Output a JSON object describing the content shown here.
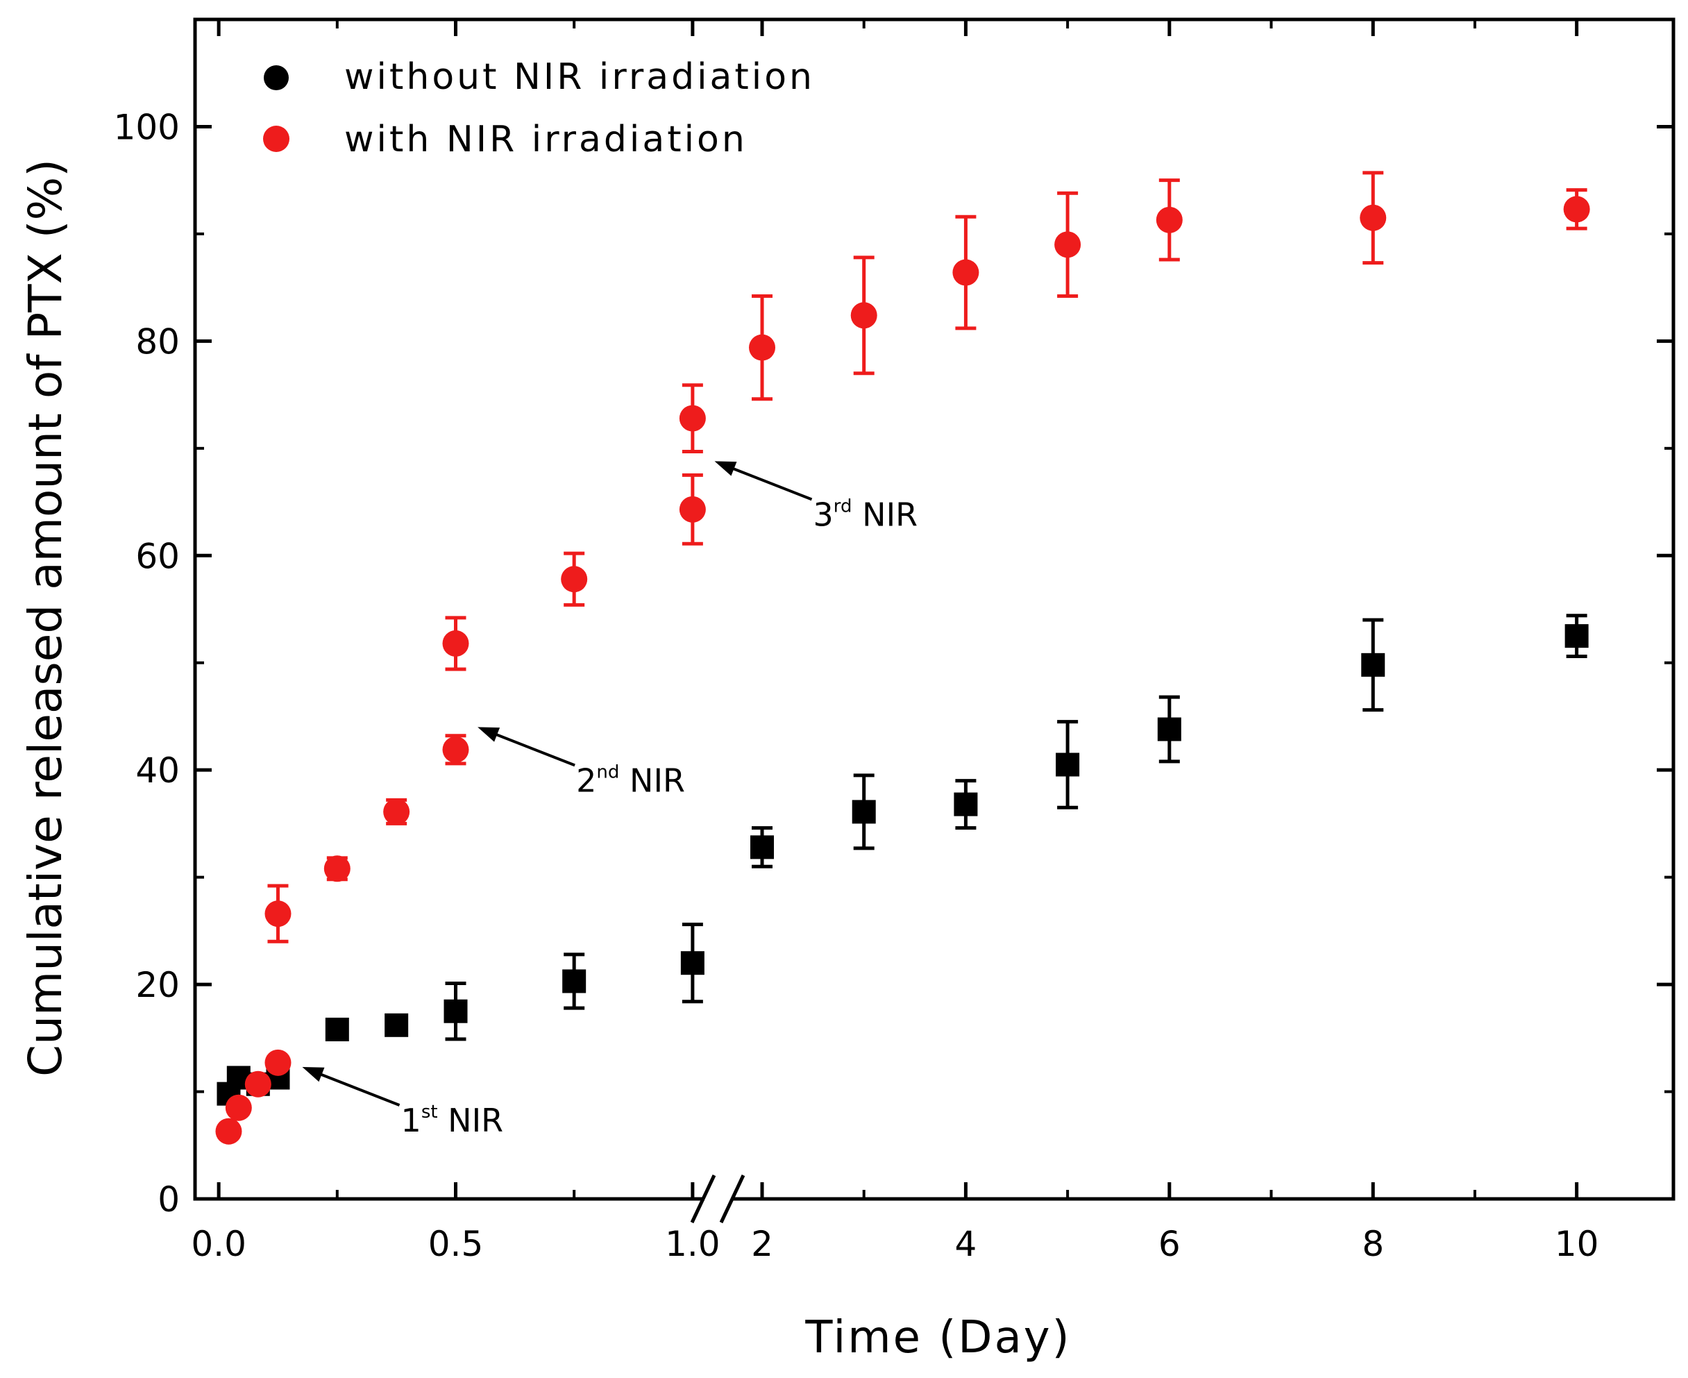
{
  "chart_data": {
    "type": "scatter",
    "title": "",
    "xlabel": "Time (Day)",
    "ylabel": "Cumulative released amount of PTX (%)",
    "ylim": [
      0,
      110
    ],
    "x_axis": {
      "broken": true,
      "segment_1": {
        "range": [
          -0.05,
          1.05
        ],
        "ticks": [
          0.0,
          0.5,
          1.0
        ],
        "tick_labels": [
          "0.0",
          "0.5",
          "1.0"
        ]
      },
      "segment_2": {
        "range": [
          1.55,
          10.95
        ],
        "ticks": [
          2,
          4,
          6,
          8,
          10
        ],
        "tick_labels": [
          "2",
          "4",
          "6",
          "8",
          "10"
        ]
      }
    },
    "y_ticks": [
      0,
      20,
      40,
      60,
      80,
      100
    ],
    "y_tick_labels": [
      "0",
      "20",
      "40",
      "60",
      "80",
      "100"
    ],
    "legend_position": "top-left",
    "series": [
      {
        "name": "without NIR irradiation",
        "color": "#000000",
        "marker": "square",
        "legend_marker": "circle",
        "x": [
          0.021,
          0.042,
          0.083,
          0.125,
          0.25,
          0.375,
          0.5,
          0.75,
          1.0,
          2,
          3,
          4,
          5,
          6,
          8,
          10
        ],
        "y": [
          9.8,
          11.3,
          10.7,
          11.3,
          15.8,
          16.2,
          17.5,
          20.3,
          22.0,
          32.8,
          36.1,
          36.8,
          40.5,
          43.8,
          49.8,
          52.5
        ],
        "err": [
          0.5,
          0.8,
          0.6,
          0.7,
          0.6,
          0.8,
          2.6,
          2.5,
          3.6,
          1.8,
          3.4,
          2.2,
          4.0,
          3.0,
          4.2,
          1.9
        ]
      },
      {
        "name": "with NIR irradiation",
        "color": "#ee1c1c",
        "marker": "circle",
        "legend_marker": "circle",
        "x": [
          0.021,
          0.042,
          0.083,
          0.125,
          0.125,
          0.25,
          0.375,
          0.5,
          0.5,
          0.75,
          1.0,
          1.0,
          2,
          3,
          4,
          5,
          6,
          8,
          10
        ],
        "y": [
          6.3,
          8.5,
          10.7,
          12.7,
          26.6,
          30.8,
          36.1,
          41.9,
          51.8,
          57.8,
          64.3,
          72.8,
          79.4,
          82.4,
          86.4,
          89.0,
          91.3,
          91.5,
          92.3
        ],
        "err": [
          0.8,
          0.8,
          0.7,
          0.8,
          2.6,
          1.0,
          1.1,
          1.3,
          2.4,
          2.4,
          3.2,
          3.1,
          4.8,
          5.4,
          5.2,
          4.8,
          3.7,
          4.2,
          1.8
        ]
      }
    ],
    "annotations": [
      {
        "text": "1",
        "sup": "st",
        "suffix": " NIR",
        "x": 0.15,
        "y": 12.3
      },
      {
        "text": "2",
        "sup": "nd",
        "suffix": " NIR",
        "x": 0.52,
        "y": 44.0
      },
      {
        "text": "3",
        "sup": "rd",
        "suffix": " NIR",
        "x": 1.02,
        "y": 68.8
      }
    ]
  }
}
